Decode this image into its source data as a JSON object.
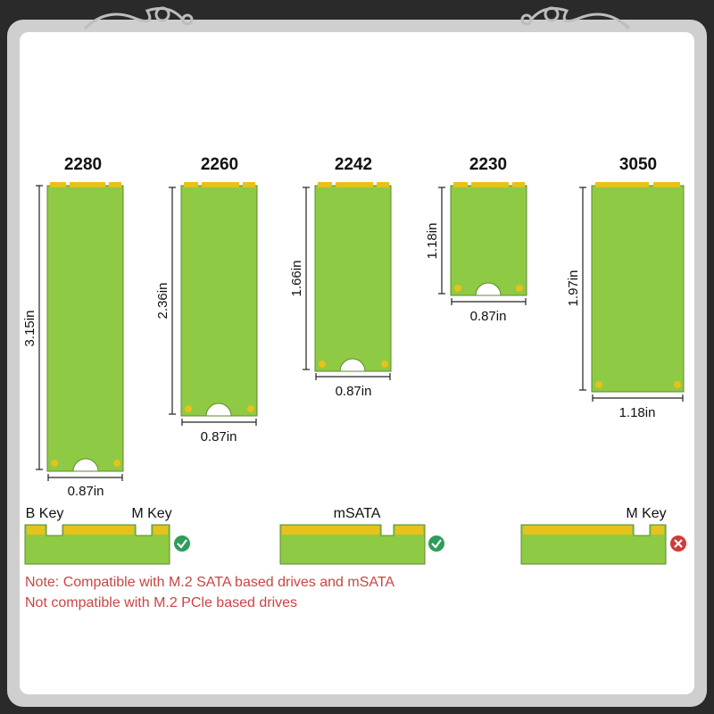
{
  "cards": [
    {
      "form_factor": "2280",
      "width_label": "0.87in",
      "length_label": "3.15in"
    },
    {
      "form_factor": "2260",
      "width_label": "0.87in",
      "length_label": "2.36in"
    },
    {
      "form_factor": "2242",
      "width_label": "0.87in",
      "length_label": "1.66in"
    },
    {
      "form_factor": "2230",
      "width_label": "0.87in",
      "length_label": "1.18in"
    },
    {
      "form_factor": "3050",
      "width_label": "1.18in",
      "length_label": "1.97in"
    }
  ],
  "connectors": [
    {
      "label_left": "B Key",
      "label_right": "M Key",
      "compatible": true
    },
    {
      "label_center": "mSATA",
      "compatible": true
    },
    {
      "label_right": "M Key",
      "compatible": false
    }
  ],
  "notes": {
    "line1": "Note: Compatible with M.2 SATA based drives and mSATA",
    "line2": "Not compatible with M.2 PCle based drives"
  },
  "colors": {
    "pcb": "#8fca45",
    "pcb_edge": "#5f8a2c",
    "gold": "#e6c21a",
    "ok": "#2e9d5a",
    "bad": "#d23a3a",
    "frame": "#d0d0d0"
  }
}
